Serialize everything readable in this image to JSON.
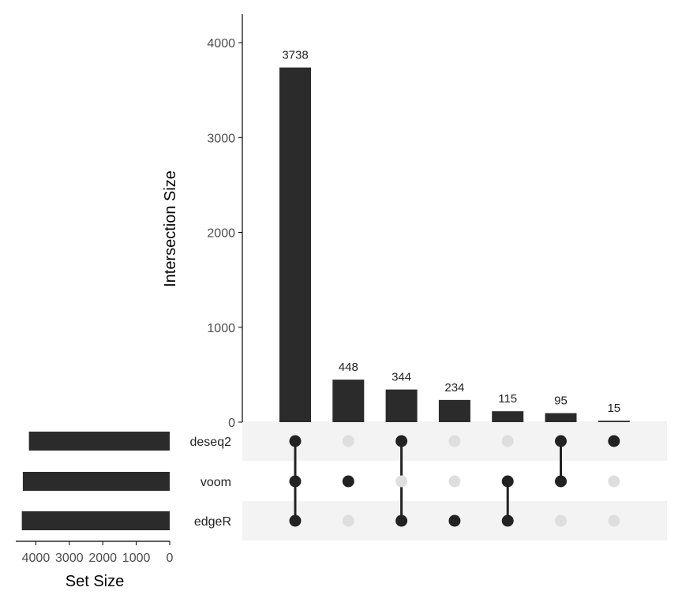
{
  "chart_data": {
    "type": "upset",
    "sets": [
      "deseq2",
      "voom",
      "edgeR"
    ],
    "set_sizes": [
      4208,
      4390,
      4420
    ],
    "set_size_axis": {
      "title": "Set Size",
      "range": [
        4600,
        0
      ],
      "ticks": [
        4000,
        3000,
        2000,
        1000,
        0
      ],
      "tick_labels": [
        "4000",
        "3000",
        "2000",
        "1000",
        "0"
      ]
    },
    "intersection_axis": {
      "title": "Intersection Size",
      "range": [
        0,
        4300
      ],
      "ticks": [
        0,
        1000,
        2000,
        3000,
        4000
      ],
      "tick_labels": [
        "0",
        "1000",
        "2000",
        "3000",
        "4000"
      ]
    },
    "intersections": [
      {
        "sets": [
          "deseq2",
          "voom",
          "edgeR"
        ],
        "value": 3738,
        "label": "3738"
      },
      {
        "sets": [
          "voom"
        ],
        "value": 448,
        "label": "448"
      },
      {
        "sets": [
          "deseq2",
          "edgeR"
        ],
        "value": 344,
        "label": "344"
      },
      {
        "sets": [
          "edgeR"
        ],
        "value": 234,
        "label": "234"
      },
      {
        "sets": [
          "voom",
          "edgeR"
        ],
        "value": 115,
        "label": "115"
      },
      {
        "sets": [
          "deseq2",
          "voom"
        ],
        "value": 95,
        "label": "95"
      },
      {
        "sets": [
          "deseq2"
        ],
        "value": 15,
        "label": "15"
      }
    ],
    "colors": {
      "bar": "#2b2b2b",
      "dot_active": "#222222",
      "dot_inactive": "#dedede",
      "stripe": "#f3f3f3",
      "axis": "#000000"
    }
  }
}
